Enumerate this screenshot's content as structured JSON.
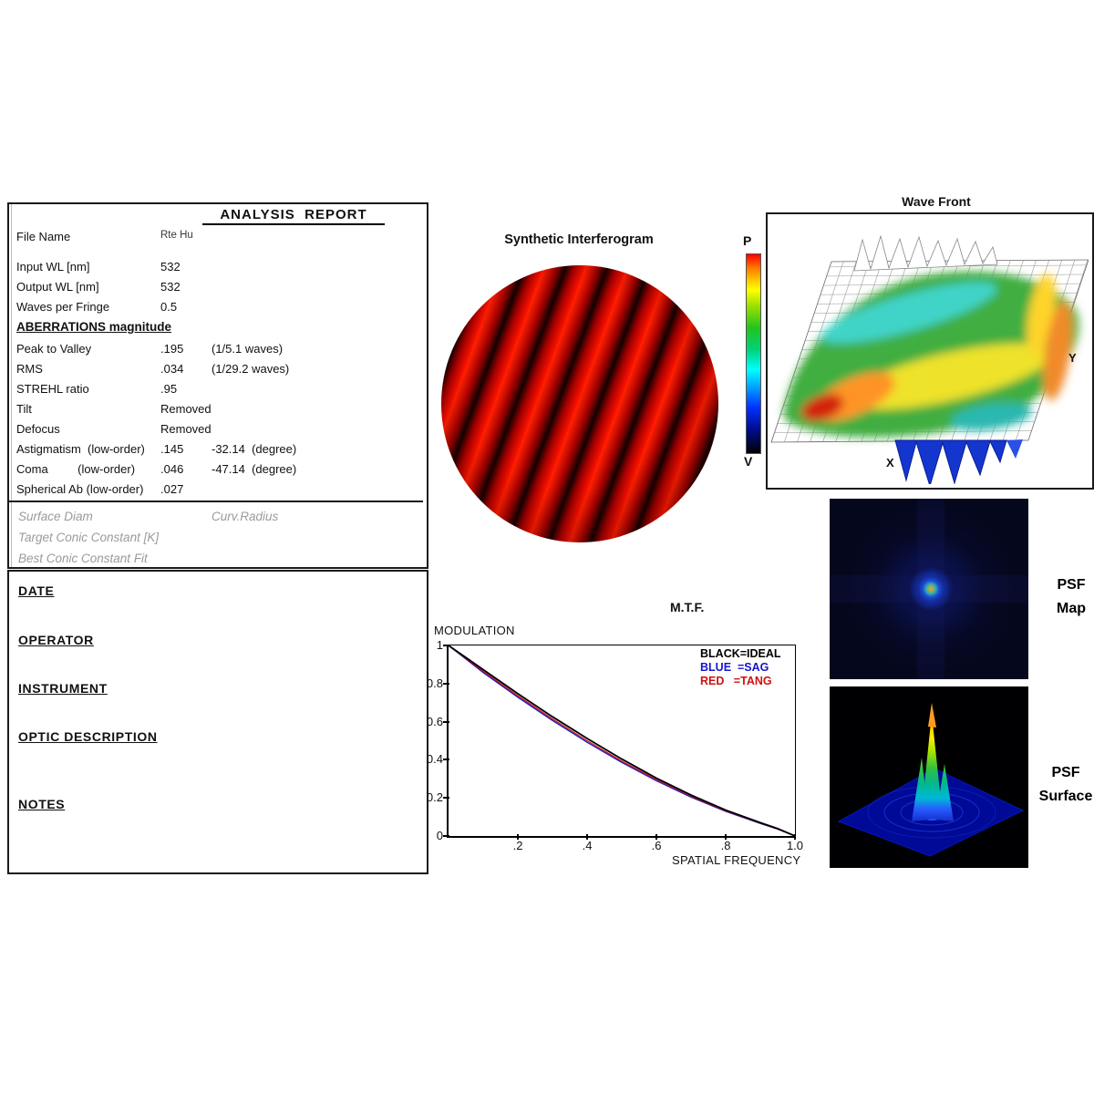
{
  "analysis_report": {
    "title": "ANALYSIS  REPORT",
    "rows": [
      {
        "label": "File Name",
        "value": "Rte Hu",
        "extra": "",
        "filename": true
      },
      {
        "label": "Input WL [nm]",
        "value": "532",
        "extra": ""
      },
      {
        "label": "Output WL [nm]",
        "value": "532",
        "extra": ""
      },
      {
        "label": "Waves per Fringe",
        "value": "0.5",
        "extra": ""
      },
      {
        "label": "ABERRATIONS magnitude",
        "value": "",
        "extra": "",
        "section": true
      },
      {
        "label": "Peak to Valley",
        "value": ".195",
        "extra": "(1/5.1 waves)"
      },
      {
        "label": "RMS",
        "value": ".034",
        "extra": "(1/29.2 waves)"
      },
      {
        "label": "STREHL ratio",
        "value": ".95",
        "extra": ""
      },
      {
        "label": "Tilt",
        "value": "Removed",
        "extra": ""
      },
      {
        "label": "Defocus",
        "value": "Removed",
        "extra": ""
      },
      {
        "label": "Astigmatism  (low-order)",
        "value": ".145",
        "extra": "-32.14  (degree)"
      },
      {
        "label": "Coma         (low-order)",
        "value": ".046",
        "extra": "-47.14  (degree)"
      },
      {
        "label": "Spherical Ab (low-order)",
        "value": ".027",
        "extra": ""
      }
    ],
    "gray": {
      "surface_diam": "Surface Diam",
      "curv_radius": "Curv.Radius",
      "target_conic": "Target Conic Constant [K]",
      "best_conic": "Best Conic Constant Fit"
    }
  },
  "info_panel": {
    "sections": [
      "DATE",
      "OPERATOR",
      "INSTRUMENT",
      "OPTIC DESCRIPTION",
      "NOTES"
    ]
  },
  "interferogram": {
    "title": "Synthetic Interferogram"
  },
  "wavefront": {
    "title": "Wave Front",
    "peak_label": "P",
    "valley_label": "V",
    "x_axis": "X",
    "y_axis": "Y"
  },
  "psf_map": {
    "line1": "PSF",
    "line2": "Map"
  },
  "psf_surface": {
    "line1": "PSF",
    "line2": "Surface"
  },
  "colors": {
    "fringe_red": "#f51000",
    "ideal_black": "#000000",
    "sag_blue": "#1515cc",
    "tang_red": "#cc1111"
  },
  "chart_data": {
    "type": "line",
    "title": "M.T.F.",
    "ylabel": "MODULATION",
    "xlabel": "SPATIAL FREQUENCY",
    "xlim": [
      0,
      1.0
    ],
    "ylim": [
      0,
      1
    ],
    "grid": false,
    "legend_position": "top-right",
    "x_ticks": [
      ".2",
      ".4",
      ".6",
      ".8",
      "1.0"
    ],
    "y_ticks": [
      "1",
      "0.8",
      "0.6",
      "0.4",
      "0.2",
      "0"
    ],
    "legend": [
      {
        "label": "BLACK=IDEAL",
        "color": "#000000"
      },
      {
        "label": "BLUE  =SAG",
        "color": "#1515cc"
      },
      {
        "label": "RED   =TANG",
        "color": "#cc1111"
      }
    ],
    "x": [
      0,
      0.1,
      0.2,
      0.3,
      0.4,
      0.5,
      0.6,
      0.7,
      0.8,
      0.9,
      0.95,
      1.0
    ],
    "series": [
      {
        "name": "IDEAL",
        "color": "#000000",
        "values": [
          1,
          0.873,
          0.747,
          0.626,
          0.512,
          0.404,
          0.304,
          0.215,
          0.136,
          0.07,
          0.039,
          0
        ]
      },
      {
        "name": "SAG",
        "color": "#1515cc",
        "values": [
          1,
          0.858,
          0.728,
          0.606,
          0.492,
          0.386,
          0.29,
          0.204,
          0.129,
          0.066,
          0.036,
          0
        ]
      },
      {
        "name": "TANG",
        "color": "#cc1111",
        "values": [
          1,
          0.864,
          0.736,
          0.614,
          0.5,
          0.393,
          0.296,
          0.209,
          0.132,
          0.068,
          0.037,
          0
        ]
      }
    ]
  }
}
